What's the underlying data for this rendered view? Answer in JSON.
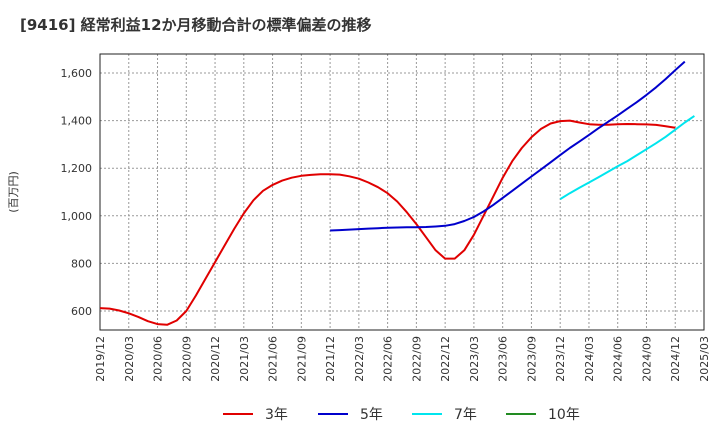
{
  "title": "[9416]  経常利益12か月移動合計の標準偏差の推移",
  "chart_data": {
    "type": "line",
    "title": "[9416]  経常利益12か月移動合計の標準偏差の推移",
    "ylabel": "(百万円)",
    "xlabel": "",
    "ylim": [
      520,
      1680
    ],
    "yticks": [
      600,
      800,
      1000,
      1200,
      1400,
      1600
    ],
    "ytick_labels": [
      "600",
      "800",
      "1,000",
      "1,200",
      "1,400",
      "1,600"
    ],
    "xlim": [
      "2019-12",
      "2025-03"
    ],
    "xtick_labels": [
      "2019/12",
      "2020/03",
      "2020/06",
      "2020/09",
      "2020/12",
      "2021/03",
      "2021/06",
      "2021/09",
      "2021/12",
      "2022/03",
      "2022/06",
      "2022/09",
      "2022/12",
      "2023/03",
      "2023/06",
      "2023/09",
      "2023/12",
      "2024/03",
      "2024/06",
      "2024/09",
      "2024/12",
      "2025/03"
    ],
    "grid": true,
    "legend_position": "bottom",
    "series": [
      {
        "name": "3年",
        "color": "#e00000",
        "points": [
          [
            "2019-12",
            612
          ],
          [
            "2020-01",
            610
          ],
          [
            "2020-02",
            602
          ],
          [
            "2020-03",
            590
          ],
          [
            "2020-04",
            575
          ],
          [
            "2020-05",
            557
          ],
          [
            "2020-06",
            545
          ],
          [
            "2020-07",
            542
          ],
          [
            "2020-08",
            560
          ],
          [
            "2020-09",
            600
          ],
          [
            "2020-10",
            665
          ],
          [
            "2020-11",
            735
          ],
          [
            "2020-12",
            805
          ],
          [
            "2021-01",
            875
          ],
          [
            "2021-02",
            945
          ],
          [
            "2021-03",
            1010
          ],
          [
            "2021-04",
            1065
          ],
          [
            "2021-05",
            1105
          ],
          [
            "2021-06",
            1130
          ],
          [
            "2021-07",
            1148
          ],
          [
            "2021-08",
            1160
          ],
          [
            "2021-09",
            1168
          ],
          [
            "2021-10",
            1172
          ],
          [
            "2021-11",
            1175
          ],
          [
            "2021-12",
            1175
          ],
          [
            "2022-01",
            1173
          ],
          [
            "2022-02",
            1166
          ],
          [
            "2022-03",
            1156
          ],
          [
            "2022-04",
            1140
          ],
          [
            "2022-05",
            1120
          ],
          [
            "2022-06",
            1095
          ],
          [
            "2022-07",
            1060
          ],
          [
            "2022-08",
            1015
          ],
          [
            "2022-09",
            965
          ],
          [
            "2022-10",
            910
          ],
          [
            "2022-11",
            855
          ],
          [
            "2022-12",
            820
          ],
          [
            "2023-01",
            820
          ],
          [
            "2023-02",
            855
          ],
          [
            "2023-03",
            920
          ],
          [
            "2023-04",
            1000
          ],
          [
            "2023-05",
            1080
          ],
          [
            "2023-06",
            1160
          ],
          [
            "2023-07",
            1230
          ],
          [
            "2023-08",
            1285
          ],
          [
            "2023-09",
            1330
          ],
          [
            "2023-10",
            1365
          ],
          [
            "2023-11",
            1388
          ],
          [
            "2023-12",
            1398
          ],
          [
            "2024-01",
            1400
          ],
          [
            "2024-02",
            1392
          ],
          [
            "2024-03",
            1385
          ],
          [
            "2024-04",
            1383
          ],
          [
            "2024-05",
            1383
          ],
          [
            "2024-06",
            1385
          ],
          [
            "2024-07",
            1386
          ],
          [
            "2024-08",
            1385
          ],
          [
            "2024-09",
            1384
          ],
          [
            "2024-10",
            1382
          ],
          [
            "2024-11",
            1376
          ],
          [
            "2024-12",
            1370
          ]
        ]
      },
      {
        "name": "5年",
        "color": "#0000cc",
        "points": [
          [
            "2021-12",
            938
          ],
          [
            "2022-01",
            940
          ],
          [
            "2022-02",
            942
          ],
          [
            "2022-03",
            944
          ],
          [
            "2022-04",
            946
          ],
          [
            "2022-05",
            948
          ],
          [
            "2022-06",
            950
          ],
          [
            "2022-07",
            951
          ],
          [
            "2022-08",
            952
          ],
          [
            "2022-09",
            952
          ],
          [
            "2022-10",
            953
          ],
          [
            "2022-11",
            955
          ],
          [
            "2022-12",
            958
          ],
          [
            "2023-01",
            965
          ],
          [
            "2023-02",
            978
          ],
          [
            "2023-03",
            995
          ],
          [
            "2023-04",
            1018
          ],
          [
            "2023-05",
            1045
          ],
          [
            "2023-06",
            1075
          ],
          [
            "2023-07",
            1105
          ],
          [
            "2023-08",
            1135
          ],
          [
            "2023-09",
            1165
          ],
          [
            "2023-10",
            1195
          ],
          [
            "2023-11",
            1225
          ],
          [
            "2023-12",
            1255
          ],
          [
            "2024-01",
            1285
          ],
          [
            "2024-02",
            1312
          ],
          [
            "2024-03",
            1340
          ],
          [
            "2024-04",
            1368
          ],
          [
            "2024-05",
            1395
          ],
          [
            "2024-06",
            1422
          ],
          [
            "2024-07",
            1450
          ],
          [
            "2024-08",
            1478
          ],
          [
            "2024-09",
            1508
          ],
          [
            "2024-10",
            1540
          ],
          [
            "2024-11",
            1575
          ],
          [
            "2024-12",
            1612
          ],
          [
            "2025-01",
            1648
          ]
        ]
      },
      {
        "name": "7年",
        "color": "#00e5ee",
        "points": [
          [
            "2023-12",
            1070
          ],
          [
            "2024-01",
            1095
          ],
          [
            "2024-02",
            1118
          ],
          [
            "2024-03",
            1140
          ],
          [
            "2024-04",
            1162
          ],
          [
            "2024-05",
            1185
          ],
          [
            "2024-06",
            1208
          ],
          [
            "2024-07",
            1230
          ],
          [
            "2024-08",
            1255
          ],
          [
            "2024-09",
            1280
          ],
          [
            "2024-10",
            1305
          ],
          [
            "2024-11",
            1332
          ],
          [
            "2024-12",
            1362
          ],
          [
            "2025-01",
            1392
          ],
          [
            "2025-02",
            1420
          ]
        ]
      },
      {
        "name": "10年",
        "color": "#228b22",
        "points": []
      }
    ]
  }
}
